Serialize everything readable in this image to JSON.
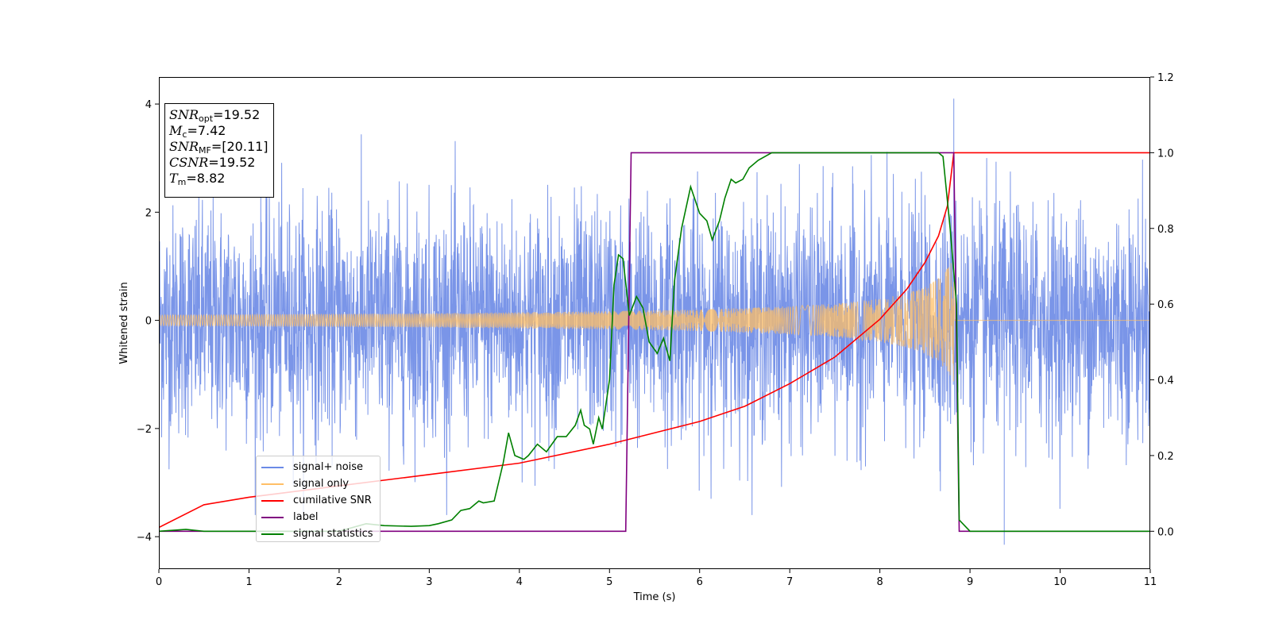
{
  "chart_data": {
    "type": "line",
    "title": "",
    "xlabel": "Time (s)",
    "ylabel": "Whitened strain",
    "y2label": "",
    "xlim": [
      0,
      11
    ],
    "ylim": [
      -4.6,
      4.5
    ],
    "y2lim": [
      -0.1,
      1.2
    ],
    "x_ticks": [
      "0",
      "1",
      "2",
      "3",
      "4",
      "5",
      "6",
      "7",
      "8",
      "9",
      "10",
      "11"
    ],
    "y_ticks": [
      "−4",
      "−2",
      "0",
      "2",
      "4"
    ],
    "y_tick_values": [
      -4,
      -2,
      0,
      2,
      4
    ],
    "y2_ticks": [
      "0.0",
      "0.2",
      "0.4",
      "0.6",
      "0.8",
      "1.0",
      "1.2"
    ],
    "y2_tick_values": [
      0.0,
      0.2,
      0.4,
      0.6,
      0.8,
      1.0,
      1.2
    ],
    "grid": false,
    "legend_position": "lower-left",
    "series": [
      {
        "name": "signal+ noise",
        "axis": "left",
        "color": "#6b8ae6",
        "description_values": {
          "typical_range": [
            -2.5,
            2.5
          ],
          "max": 4.1,
          "max_at": 8.82,
          "min": -4.15,
          "min_at": 9.38
        }
      },
      {
        "name": "signal only",
        "axis": "left",
        "color": "#ffbf66",
        "envelope": {
          "x": [
            0,
            1,
            2,
            3,
            4,
            5,
            6,
            7,
            7.5,
            8,
            8.3,
            8.5,
            8.65,
            8.75,
            8.82
          ],
          "y": [
            0.1,
            0.11,
            0.12,
            0.13,
            0.15,
            0.17,
            0.2,
            0.26,
            0.31,
            0.4,
            0.5,
            0.62,
            0.78,
            0.95,
            1.15
          ]
        },
        "after_merger_value": 0
      },
      {
        "name": "cumilative SNR",
        "axis": "right",
        "x": [
          0,
          0.5,
          1,
          2,
          3,
          4,
          5,
          6,
          6.5,
          7,
          7.5,
          8,
          8.3,
          8.5,
          8.65,
          8.75,
          8.82,
          11
        ],
        "y": [
          0.01,
          0.07,
          0.09,
          0.12,
          0.15,
          0.18,
          0.23,
          0.29,
          0.33,
          0.39,
          0.46,
          0.56,
          0.64,
          0.71,
          0.78,
          0.86,
          1.0,
          1.0
        ],
        "color": "#ff0000"
      },
      {
        "name": "label",
        "axis": "right",
        "x": [
          0,
          5.18,
          5.24,
          8.82,
          8.88,
          11
        ],
        "y": [
          0.0,
          0.0,
          1.0,
          1.0,
          0.0,
          0.0
        ],
        "color": "#800080"
      },
      {
        "name": "signal statistics",
        "axis": "right",
        "x": [
          0,
          0.3,
          0.5,
          1.0,
          2.0,
          2.3,
          2.5,
          2.8,
          3.0,
          3.1,
          3.25,
          3.35,
          3.45,
          3.55,
          3.6,
          3.72,
          3.82,
          3.88,
          3.95,
          4.05,
          4.1,
          4.2,
          4.3,
          4.42,
          4.52,
          4.62,
          4.68,
          4.72,
          4.78,
          4.82,
          4.88,
          4.92,
          5.0,
          5.05,
          5.1,
          5.15,
          5.22,
          5.3,
          5.37,
          5.44,
          5.53,
          5.6,
          5.67,
          5.72,
          5.8,
          5.9,
          6.0,
          6.08,
          6.14,
          6.22,
          6.28,
          6.35,
          6.4,
          6.48,
          6.55,
          6.65,
          6.8,
          7.0,
          7.5,
          8.0,
          8.5,
          8.65,
          8.7,
          8.78,
          8.85,
          8.88,
          9.0,
          11
        ],
        "y": [
          0.0,
          0.005,
          0.0,
          0.0,
          0.0,
          0.02,
          0.015,
          0.013,
          0.015,
          0.02,
          0.03,
          0.055,
          0.06,
          0.08,
          0.075,
          0.08,
          0.18,
          0.26,
          0.2,
          0.19,
          0.2,
          0.23,
          0.21,
          0.25,
          0.25,
          0.28,
          0.32,
          0.28,
          0.27,
          0.23,
          0.3,
          0.27,
          0.4,
          0.65,
          0.73,
          0.72,
          0.57,
          0.62,
          0.59,
          0.5,
          0.47,
          0.51,
          0.45,
          0.66,
          0.8,
          0.91,
          0.84,
          0.82,
          0.77,
          0.82,
          0.88,
          0.93,
          0.92,
          0.93,
          0.96,
          0.98,
          1.0,
          1.0,
          1.0,
          1.0,
          1.0,
          1.0,
          0.99,
          0.8,
          0.6,
          0.03,
          0.0,
          0.0
        ],
        "color": "#008000"
      }
    ]
  },
  "info_box": {
    "snr_opt_label": "SNR",
    "snr_opt_sub": "opt",
    "snr_opt_value": "=19.52",
    "mc_label": "M",
    "mc_sub": "c",
    "mc_value": "=7.42",
    "snr_mf_label": "SNR",
    "snr_mf_sub": "MF",
    "snr_mf_value": "=[20.11]",
    "csnr_label": "CSNR",
    "csnr_value": "=19.52",
    "tm_label": "T",
    "tm_sub": "m",
    "tm_value": "=8.82"
  }
}
